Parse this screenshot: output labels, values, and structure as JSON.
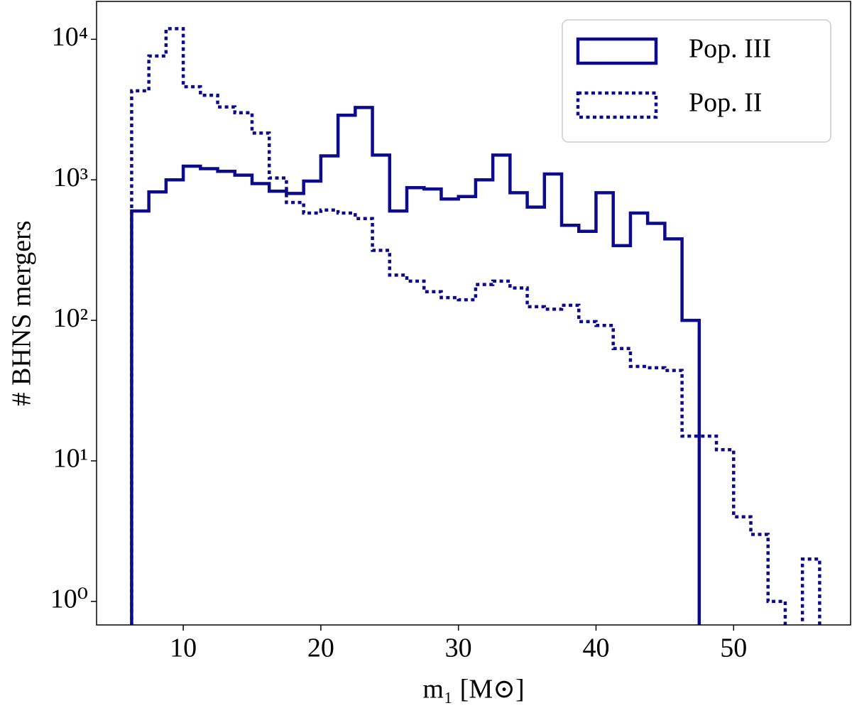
{
  "chart_data": {
    "type": "histogram",
    "xlabel": "m₁ [M⊙]",
    "ylabel": "# BHNS mergers",
    "bins": [
      6.25,
      7.5,
      8.75,
      10,
      11.25,
      12.5,
      13.75,
      15,
      16.25,
      17.5,
      18.75,
      20,
      21.25,
      22.5,
      23.75,
      25,
      26.25,
      27.5,
      28.75,
      30,
      31.25,
      32.5,
      33.75,
      35,
      36.25,
      37.5,
      38.75,
      40,
      41.25,
      42.5,
      43.75,
      45,
      46.25,
      47.5,
      48.75,
      50,
      51.25,
      52.5,
      53.75,
      55,
      56.25
    ],
    "series": [
      {
        "name": "Pop. III",
        "color": "#0b0b8c",
        "linestyle": "solid",
        "values": [
          600,
          820,
          1000,
          1250,
          1200,
          1150,
          1080,
          940,
          830,
          800,
          980,
          1480,
          2880,
          3270,
          1500,
          600,
          880,
          860,
          730,
          760,
          1000,
          1500,
          810,
          640,
          1100,
          475,
          430,
          810,
          340,
          580,
          490,
          380,
          100,
          0,
          0,
          0,
          0,
          0,
          0,
          0
        ]
      },
      {
        "name": "Pop. II",
        "color": "#0b0b8c",
        "linestyle": "dotted",
        "values": [
          4300,
          7600,
          11900,
          4600,
          4000,
          3300,
          3000,
          2150,
          1030,
          690,
          580,
          610,
          580,
          530,
          315,
          210,
          190,
          160,
          145,
          140,
          180,
          190,
          170,
          125,
          120,
          128,
          98,
          92,
          63,
          47,
          46,
          44,
          15,
          15,
          12,
          4,
          3,
          1,
          0,
          2
        ]
      }
    ],
    "xlim": [
      3.7,
      58.5
    ],
    "xticks": [
      10,
      20,
      30,
      40,
      50
    ],
    "ylim": [
      0.68,
      18600
    ],
    "yscale": "log",
    "yticks": [
      {
        "value": 1,
        "label": "10⁰"
      },
      {
        "value": 10,
        "label": "10¹"
      },
      {
        "value": 100,
        "label": "10²"
      },
      {
        "value": 1000,
        "label": "10³"
      },
      {
        "value": 10000,
        "label": "10⁴"
      }
    ],
    "legend": "upper right"
  }
}
